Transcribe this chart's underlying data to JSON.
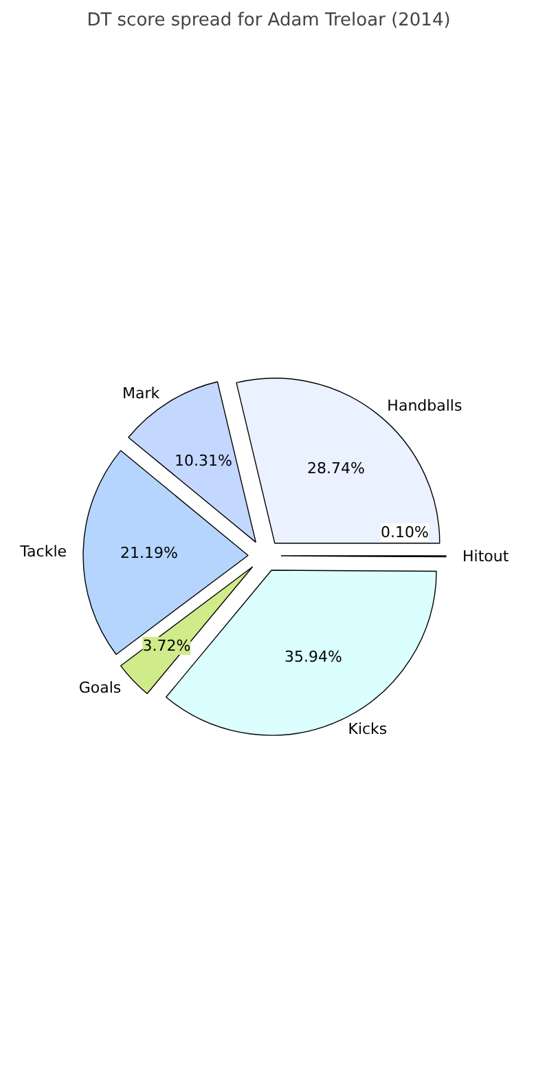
{
  "chart_data": {
    "type": "pie",
    "title": "DT score spread for Adam Treloar (2014)",
    "categories": [
      "Handballs",
      "Mark",
      "Tackle",
      "Goals",
      "Kicks",
      "Hitout"
    ],
    "values": [
      28.74,
      10.31,
      21.19,
      3.72,
      35.94,
      0.1
    ],
    "value_labels": [
      "28.74%",
      "10.31%",
      "21.19%",
      "3.72%",
      "35.94%",
      "0.10%"
    ],
    "colors": [
      "#eaf1ff",
      "#c4d7ff",
      "#b5d5ff",
      "#d0eb8a",
      "#dbffff",
      "#ffffff"
    ]
  }
}
